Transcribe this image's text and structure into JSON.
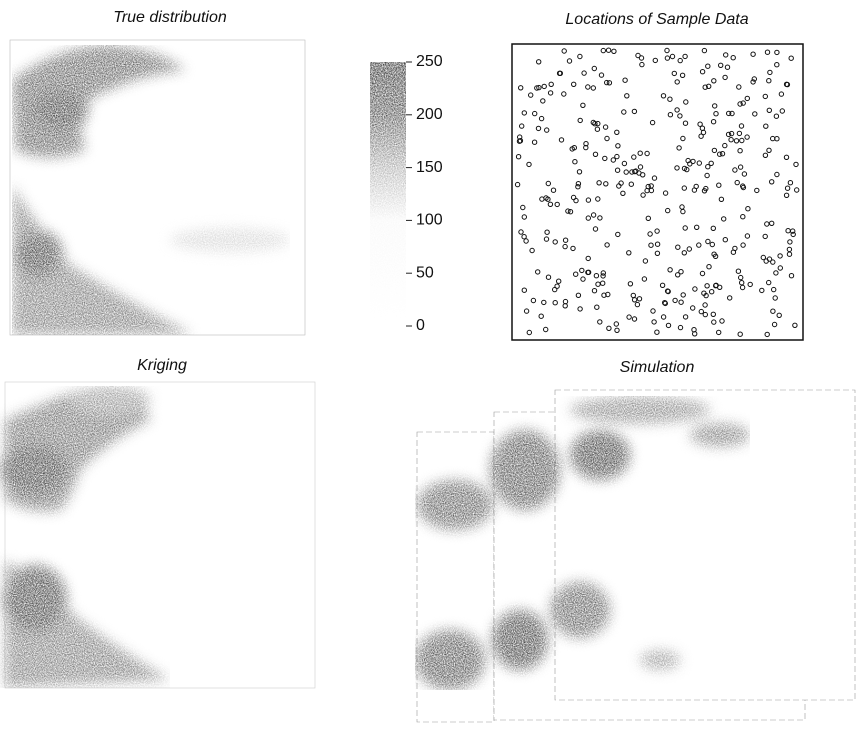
{
  "panels": [
    {
      "title": "True distribution"
    },
    {
      "title": "Locations of Sample Data"
    },
    {
      "title": "Kriging"
    },
    {
      "title": "Simulation"
    }
  ],
  "colorbar": {
    "lim": [
      0,
      250
    ],
    "ticks": [
      0,
      50,
      100,
      150,
      200,
      250
    ]
  }
}
